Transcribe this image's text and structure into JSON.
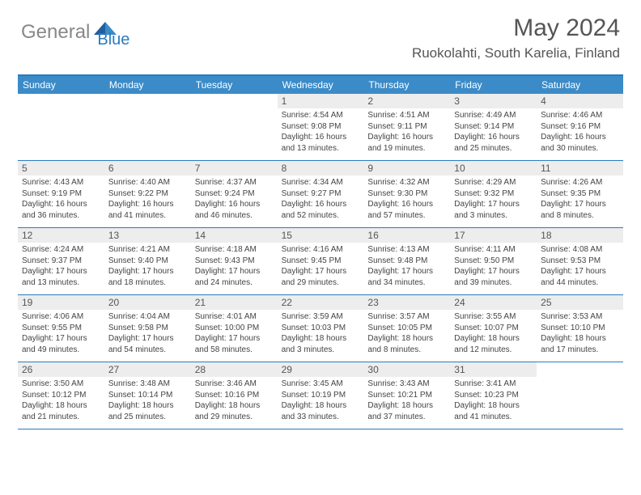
{
  "logo": {
    "gray": "General",
    "blue": "Blue"
  },
  "title": "May 2024",
  "location": "Ruokolahti, South Karelia, Finland",
  "colors": {
    "header_bg": "#3b8bc8",
    "border": "#2b7bbf",
    "daynum_bg": "#ededed",
    "text": "#444444",
    "logo_gray": "#888888",
    "logo_blue": "#2b7bbf"
  },
  "weekdays": [
    "Sunday",
    "Monday",
    "Tuesday",
    "Wednesday",
    "Thursday",
    "Friday",
    "Saturday"
  ],
  "weeks": [
    [
      null,
      null,
      null,
      {
        "n": "1",
        "sr": "Sunrise: 4:54 AM",
        "ss": "Sunset: 9:08 PM",
        "d1": "Daylight: 16 hours",
        "d2": "and 13 minutes."
      },
      {
        "n": "2",
        "sr": "Sunrise: 4:51 AM",
        "ss": "Sunset: 9:11 PM",
        "d1": "Daylight: 16 hours",
        "d2": "and 19 minutes."
      },
      {
        "n": "3",
        "sr": "Sunrise: 4:49 AM",
        "ss": "Sunset: 9:14 PM",
        "d1": "Daylight: 16 hours",
        "d2": "and 25 minutes."
      },
      {
        "n": "4",
        "sr": "Sunrise: 4:46 AM",
        "ss": "Sunset: 9:16 PM",
        "d1": "Daylight: 16 hours",
        "d2": "and 30 minutes."
      }
    ],
    [
      {
        "n": "5",
        "sr": "Sunrise: 4:43 AM",
        "ss": "Sunset: 9:19 PM",
        "d1": "Daylight: 16 hours",
        "d2": "and 36 minutes."
      },
      {
        "n": "6",
        "sr": "Sunrise: 4:40 AM",
        "ss": "Sunset: 9:22 PM",
        "d1": "Daylight: 16 hours",
        "d2": "and 41 minutes."
      },
      {
        "n": "7",
        "sr": "Sunrise: 4:37 AM",
        "ss": "Sunset: 9:24 PM",
        "d1": "Daylight: 16 hours",
        "d2": "and 46 minutes."
      },
      {
        "n": "8",
        "sr": "Sunrise: 4:34 AM",
        "ss": "Sunset: 9:27 PM",
        "d1": "Daylight: 16 hours",
        "d2": "and 52 minutes."
      },
      {
        "n": "9",
        "sr": "Sunrise: 4:32 AM",
        "ss": "Sunset: 9:30 PM",
        "d1": "Daylight: 16 hours",
        "d2": "and 57 minutes."
      },
      {
        "n": "10",
        "sr": "Sunrise: 4:29 AM",
        "ss": "Sunset: 9:32 PM",
        "d1": "Daylight: 17 hours",
        "d2": "and 3 minutes."
      },
      {
        "n": "11",
        "sr": "Sunrise: 4:26 AM",
        "ss": "Sunset: 9:35 PM",
        "d1": "Daylight: 17 hours",
        "d2": "and 8 minutes."
      }
    ],
    [
      {
        "n": "12",
        "sr": "Sunrise: 4:24 AM",
        "ss": "Sunset: 9:37 PM",
        "d1": "Daylight: 17 hours",
        "d2": "and 13 minutes."
      },
      {
        "n": "13",
        "sr": "Sunrise: 4:21 AM",
        "ss": "Sunset: 9:40 PM",
        "d1": "Daylight: 17 hours",
        "d2": "and 18 minutes."
      },
      {
        "n": "14",
        "sr": "Sunrise: 4:18 AM",
        "ss": "Sunset: 9:43 PM",
        "d1": "Daylight: 17 hours",
        "d2": "and 24 minutes."
      },
      {
        "n": "15",
        "sr": "Sunrise: 4:16 AM",
        "ss": "Sunset: 9:45 PM",
        "d1": "Daylight: 17 hours",
        "d2": "and 29 minutes."
      },
      {
        "n": "16",
        "sr": "Sunrise: 4:13 AM",
        "ss": "Sunset: 9:48 PM",
        "d1": "Daylight: 17 hours",
        "d2": "and 34 minutes."
      },
      {
        "n": "17",
        "sr": "Sunrise: 4:11 AM",
        "ss": "Sunset: 9:50 PM",
        "d1": "Daylight: 17 hours",
        "d2": "and 39 minutes."
      },
      {
        "n": "18",
        "sr": "Sunrise: 4:08 AM",
        "ss": "Sunset: 9:53 PM",
        "d1": "Daylight: 17 hours",
        "d2": "and 44 minutes."
      }
    ],
    [
      {
        "n": "19",
        "sr": "Sunrise: 4:06 AM",
        "ss": "Sunset: 9:55 PM",
        "d1": "Daylight: 17 hours",
        "d2": "and 49 minutes."
      },
      {
        "n": "20",
        "sr": "Sunrise: 4:04 AM",
        "ss": "Sunset: 9:58 PM",
        "d1": "Daylight: 17 hours",
        "d2": "and 54 minutes."
      },
      {
        "n": "21",
        "sr": "Sunrise: 4:01 AM",
        "ss": "Sunset: 10:00 PM",
        "d1": "Daylight: 17 hours",
        "d2": "and 58 minutes."
      },
      {
        "n": "22",
        "sr": "Sunrise: 3:59 AM",
        "ss": "Sunset: 10:03 PM",
        "d1": "Daylight: 18 hours",
        "d2": "and 3 minutes."
      },
      {
        "n": "23",
        "sr": "Sunrise: 3:57 AM",
        "ss": "Sunset: 10:05 PM",
        "d1": "Daylight: 18 hours",
        "d2": "and 8 minutes."
      },
      {
        "n": "24",
        "sr": "Sunrise: 3:55 AM",
        "ss": "Sunset: 10:07 PM",
        "d1": "Daylight: 18 hours",
        "d2": "and 12 minutes."
      },
      {
        "n": "25",
        "sr": "Sunrise: 3:53 AM",
        "ss": "Sunset: 10:10 PM",
        "d1": "Daylight: 18 hours",
        "d2": "and 17 minutes."
      }
    ],
    [
      {
        "n": "26",
        "sr": "Sunrise: 3:50 AM",
        "ss": "Sunset: 10:12 PM",
        "d1": "Daylight: 18 hours",
        "d2": "and 21 minutes."
      },
      {
        "n": "27",
        "sr": "Sunrise: 3:48 AM",
        "ss": "Sunset: 10:14 PM",
        "d1": "Daylight: 18 hours",
        "d2": "and 25 minutes."
      },
      {
        "n": "28",
        "sr": "Sunrise: 3:46 AM",
        "ss": "Sunset: 10:16 PM",
        "d1": "Daylight: 18 hours",
        "d2": "and 29 minutes."
      },
      {
        "n": "29",
        "sr": "Sunrise: 3:45 AM",
        "ss": "Sunset: 10:19 PM",
        "d1": "Daylight: 18 hours",
        "d2": "and 33 minutes."
      },
      {
        "n": "30",
        "sr": "Sunrise: 3:43 AM",
        "ss": "Sunset: 10:21 PM",
        "d1": "Daylight: 18 hours",
        "d2": "and 37 minutes."
      },
      {
        "n": "31",
        "sr": "Sunrise: 3:41 AM",
        "ss": "Sunset: 10:23 PM",
        "d1": "Daylight: 18 hours",
        "d2": "and 41 minutes."
      },
      null
    ]
  ]
}
